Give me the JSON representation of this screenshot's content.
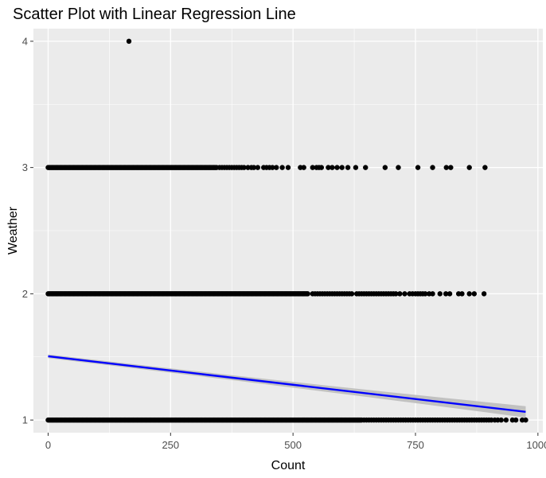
{
  "chart_data": {
    "type": "scatter",
    "title": "Scatter Plot with Linear Regression Line",
    "xlabel": "Count",
    "ylabel": "Weather",
    "xlim": [
      -30,
      1010
    ],
    "ylim": [
      0.9,
      4.1
    ],
    "x_ticks": [
      0,
      250,
      500,
      750,
      1000
    ],
    "x_tick_labels": [
      "0",
      "250",
      "500",
      "750",
      "1000"
    ],
    "y_ticks": [
      1,
      2,
      3,
      4
    ],
    "y_tick_labels": [
      "1",
      "2",
      "3",
      "4"
    ],
    "grid": true,
    "legend": "none",
    "series": [
      {
        "weather": 1,
        "dense_range": [
          0,
          640
        ],
        "sparse_x": [
          645,
          650,
          655,
          660,
          665,
          670,
          675,
          680,
          685,
          690,
          695,
          700,
          705,
          710,
          715,
          720,
          725,
          730,
          735,
          740,
          745,
          750,
          755,
          760,
          765,
          770,
          775,
          780,
          785,
          790,
          795,
          800,
          805,
          810,
          815,
          820,
          825,
          830,
          835,
          840,
          845,
          850,
          855,
          860,
          865,
          870,
          875,
          880,
          885,
          890,
          895,
          900,
          905,
          912,
          918,
          925,
          935,
          948,
          955,
          968,
          975
        ]
      },
      {
        "weather": 2,
        "dense_range": [
          0,
          530
        ],
        "sparse_x": [
          540,
          545,
          550,
          555,
          560,
          565,
          570,
          575,
          580,
          585,
          590,
          595,
          600,
          605,
          610,
          615,
          620,
          630,
          635,
          640,
          645,
          650,
          655,
          660,
          665,
          670,
          675,
          680,
          685,
          690,
          695,
          700,
          705,
          710,
          718,
          728,
          738,
          744,
          750,
          755,
          760,
          765,
          770,
          778,
          785,
          800,
          812,
          820,
          838,
          845,
          860,
          870,
          890
        ]
      },
      {
        "weather": 3,
        "dense_range": [
          0,
          345
        ],
        "sparse_x": [
          350,
          355,
          360,
          365,
          370,
          375,
          380,
          385,
          390,
          395,
          400,
          408,
          415,
          420,
          428,
          440,
          446,
          452,
          458,
          466,
          478,
          490,
          515,
          522,
          540,
          548,
          553,
          558,
          572,
          580,
          590,
          600,
          612,
          628,
          648,
          688,
          715,
          755,
          785,
          813,
          822,
          860,
          892
        ]
      },
      {
        "weather": 4,
        "dense_range": null,
        "sparse_x": [
          165
        ]
      }
    ],
    "regression": {
      "x": [
        0,
        975
      ],
      "y": [
        1.505,
        1.065
      ],
      "ci_halfwidth": [
        0.015,
        0.045
      ],
      "line_color": "#0000ff",
      "band_color": "#bdbdbd"
    }
  },
  "colors": {
    "panel_bg": "#ebebeb",
    "grid_major": "#ffffff",
    "point": "#000000",
    "tick_mark": "#333333"
  }
}
